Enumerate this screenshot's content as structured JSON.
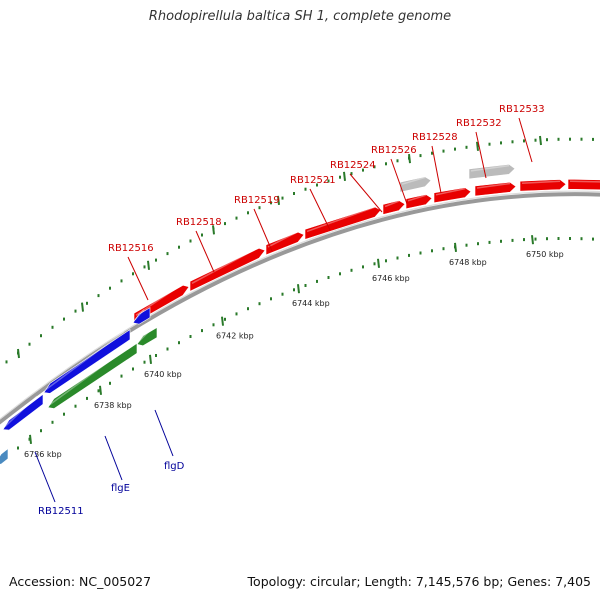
{
  "title": "Rhodopirellula baltica SH 1, complete genome",
  "footer": {
    "accession_prefix": "Accession:",
    "accession": "NC_005027",
    "topology_prefix": "Topology:",
    "topology": "circular",
    "length_prefix": "Length:",
    "length": "7,145,576 bp",
    "genes_prefix": "Genes:",
    "genes": "7,405"
  },
  "ruler_labels": [
    "6736 kbp",
    "6738 kbp",
    "6740 kbp",
    "6742 kbp",
    "6744 kbp",
    "6746 kbp",
    "6748 kbp",
    "6750 kbp"
  ],
  "gene_labels_forward": [
    "RB12516",
    "RB12518",
    "RB12519",
    "RB12521",
    "RB12524",
    "RB12526",
    "RB12528",
    "RB12532",
    "RB12533"
  ],
  "gene_labels_reverse": [
    "RB12511",
    "flgE",
    "flgD"
  ],
  "colors": {
    "forward_gene": "#e80000",
    "forward_other": "#bbbbbb",
    "reverse_blue": "#1010dd",
    "reverse_green": "#2a8a2a",
    "reverse_light": "#4a8ac0",
    "tick": "#2a7a2a",
    "backbone": "#888888",
    "label_forward": "#cc0000",
    "label_reverse": "#000099"
  }
}
